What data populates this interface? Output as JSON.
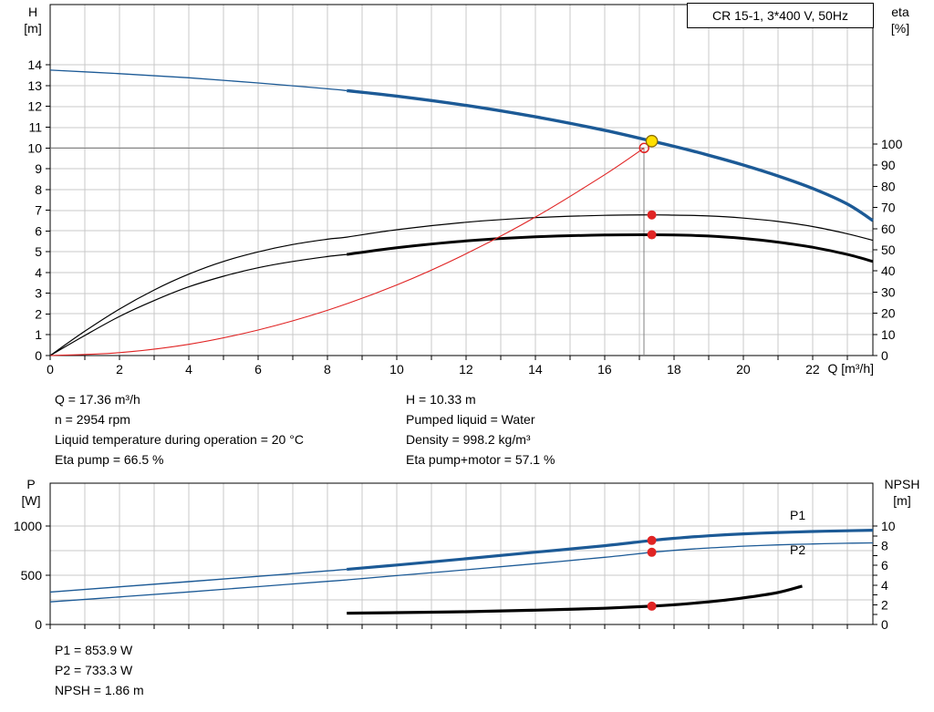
{
  "model_box": "CR 15-1, 3*400 V, 50Hz",
  "details": {
    "left": [
      "Q = 17.36 m³/h",
      "n = 2954 rpm",
      "Liquid temperature during operation = 20 °C",
      "Eta pump = 66.5 %"
    ],
    "right": [
      "H = 10.33 m",
      "Pumped liquid = Water",
      "Density = 998.2 kg/m³",
      "Eta pump+motor = 57.1 %"
    ]
  },
  "power_details": [
    "P1 = 853.9 W",
    "P2 = 733.3 W",
    "NPSH = 1.86 m"
  ],
  "colors": {
    "curve_blue": "#1c5a96",
    "curve_black": "#000000",
    "curve_red": "#e02424",
    "duty_yellow": "#ffdf00",
    "duty_ring": "#8a6d00",
    "grid": "#c9c9c9",
    "crosshair": "#808080",
    "axis": "#000000",
    "label_blue": "#1c5a96"
  },
  "chart_data": [
    {
      "type": "line",
      "title": "CR 15-1, 3*400 V, 50Hz",
      "grid": true,
      "x_axis": {
        "label": "Q [m³/h]",
        "min": 0,
        "max": 23.74,
        "tick_step": 1,
        "label_step": 2
      },
      "y_left": {
        "label": "H",
        "unit": "[m]",
        "min": 0,
        "max": 14,
        "tick_step": 1,
        "label_step": 1
      },
      "y_right": {
        "label": "eta",
        "unit": "[%]",
        "min": 0,
        "max": 100,
        "tick_step": 10,
        "label_step": 10
      },
      "operating_range_start": 8.56,
      "series": [
        {
          "name": "eta-pump",
          "axis": "right",
          "color_key": "curve_black",
          "width": 1.2,
          "points": [
            [
              0,
              0
            ],
            [
              1,
              11.5
            ],
            [
              2,
              22
            ],
            [
              3,
              31
            ],
            [
              4,
              38.5
            ],
            [
              5,
              44.5
            ],
            [
              6,
              49
            ],
            [
              7,
              52.5
            ],
            [
              8,
              55
            ],
            [
              8.56,
              56
            ],
            [
              10,
              59.5
            ],
            [
              12,
              63
            ],
            [
              14,
              65.2
            ],
            [
              16,
              66.3
            ],
            [
              17.36,
              66.5
            ],
            [
              18,
              66.4
            ],
            [
              19,
              66
            ],
            [
              20,
              65
            ],
            [
              21,
              63.4
            ],
            [
              22,
              61
            ],
            [
              23,
              57.6
            ],
            [
              23.74,
              54.5
            ]
          ]
        },
        {
          "name": "eta-pump-motor",
          "axis": "right",
          "color_key": "curve_black",
          "width": 1.2,
          "emph_from": 8.56,
          "emph_width": 3,
          "points": [
            [
              0,
              0
            ],
            [
              1,
              9.5
            ],
            [
              2,
              18.5
            ],
            [
              3,
              26
            ],
            [
              4,
              32.5
            ],
            [
              5,
              37.5
            ],
            [
              6,
              41.5
            ],
            [
              7,
              44.5
            ],
            [
              8,
              46.8
            ],
            [
              8.56,
              47.8
            ],
            [
              10,
              51
            ],
            [
              12,
              54.2
            ],
            [
              14,
              56.1
            ],
            [
              16,
              57
            ],
            [
              17.36,
              57.1
            ],
            [
              18,
              57
            ],
            [
              19,
              56.5
            ],
            [
              20,
              55.4
            ],
            [
              21,
              53.6
            ],
            [
              22,
              51.2
            ],
            [
              23,
              47.8
            ],
            [
              23.74,
              44.5
            ]
          ]
        },
        {
          "name": "system-curve",
          "axis": "left",
          "color_key": "curve_red",
          "width": 1.1,
          "points": [
            [
              0,
              0
            ],
            [
              2,
              0.14
            ],
            [
              4,
              0.54
            ],
            [
              6,
              1.23
            ],
            [
              8,
              2.18
            ],
            [
              10,
              3.4
            ],
            [
              12,
              4.9
            ],
            [
              14,
              6.67
            ],
            [
              16,
              8.71
            ],
            [
              17.14,
              10.0
            ]
          ]
        },
        {
          "name": "head",
          "axis": "left",
          "color_key": "curve_blue",
          "width": 1.3,
          "emph_from": 8.56,
          "emph_width": 3.4,
          "points": [
            [
              0,
              13.75
            ],
            [
              2,
              13.58
            ],
            [
              4,
              13.38
            ],
            [
              6,
              13.13
            ],
            [
              8,
              12.85
            ],
            [
              8.56,
              12.76
            ],
            [
              10,
              12.5
            ],
            [
              12,
              12.05
            ],
            [
              14,
              11.5
            ],
            [
              16,
              10.85
            ],
            [
              17.36,
              10.33
            ],
            [
              18,
              10.08
            ],
            [
              19,
              9.65
            ],
            [
              20,
              9.18
            ],
            [
              21,
              8.65
            ],
            [
              22,
              8.05
            ],
            [
              23,
              7.3
            ],
            [
              23.74,
              6.5
            ]
          ]
        }
      ],
      "crosshair": {
        "q": 17.14,
        "h": 10.0
      },
      "markers": [
        {
          "name": "requested-duty-point",
          "q": 17.14,
          "value": 10.0,
          "axis": "left",
          "style": "open-red"
        },
        {
          "name": "eta-pump-point",
          "q": 17.36,
          "value": 66.5,
          "axis": "right",
          "style": "red"
        },
        {
          "name": "eta-pump-motor-point",
          "q": 17.36,
          "value": 57.1,
          "axis": "right",
          "style": "red"
        },
        {
          "name": "duty-point",
          "q": 17.36,
          "value": 10.33,
          "axis": "left",
          "style": "duty"
        }
      ]
    },
    {
      "type": "line",
      "title": "",
      "grid": true,
      "x_axis": {
        "label": "",
        "min": 0,
        "max": 23.74,
        "tick_step": 1,
        "label_step": 0
      },
      "y_left": {
        "label": "P",
        "unit": "[W]",
        "min": 0,
        "max": 1000,
        "tick_step": 500,
        "label_step": 500
      },
      "y_right": {
        "label": "NPSH",
        "unit": "[m]",
        "min": 0,
        "max": 10,
        "tick_step": 1,
        "label_step": 2
      },
      "operating_range_start": 8.56,
      "series": [
        {
          "name": "p1",
          "label": "P1",
          "axis": "left",
          "color_key": "curve_blue",
          "width": 1.4,
          "emph_from": 8.56,
          "emph_width": 3.2,
          "points": [
            [
              0,
              330
            ],
            [
              2,
              382
            ],
            [
              4,
              435
            ],
            [
              6,
              489
            ],
            [
              8,
              544
            ],
            [
              8.56,
              560
            ],
            [
              10,
              604
            ],
            [
              12,
              668
            ],
            [
              14,
              734
            ],
            [
              16,
              800
            ],
            [
              17.36,
              854
            ],
            [
              18,
              875
            ],
            [
              19,
              901
            ],
            [
              20,
              920
            ],
            [
              21,
              934
            ],
            [
              22,
              944
            ],
            [
              23,
              952
            ],
            [
              23.74,
              957
            ]
          ]
        },
        {
          "name": "p2",
          "label": "P2",
          "axis": "left",
          "color_key": "curve_blue",
          "width": 1.3,
          "points": [
            [
              0,
              230
            ],
            [
              2,
              280
            ],
            [
              4,
              331
            ],
            [
              6,
              384
            ],
            [
              8,
              438
            ],
            [
              8.56,
              453
            ],
            [
              10,
              496
            ],
            [
              12,
              556
            ],
            [
              14,
              618
            ],
            [
              16,
              682
            ],
            [
              17.36,
              733
            ],
            [
              18,
              753
            ],
            [
              19,
              777
            ],
            [
              20,
              795
            ],
            [
              21,
              808
            ],
            [
              22,
              818
            ],
            [
              23,
              825
            ],
            [
              23.74,
              829
            ]
          ]
        },
        {
          "name": "npsh",
          "axis": "right",
          "color_key": "curve_black",
          "width": 3.2,
          "points": [
            [
              8.56,
              1.15
            ],
            [
              10,
              1.2
            ],
            [
              12,
              1.3
            ],
            [
              14,
              1.45
            ],
            [
              16,
              1.65
            ],
            [
              17.36,
              1.86
            ],
            [
              18,
              2.0
            ],
            [
              19,
              2.3
            ],
            [
              20,
              2.7
            ],
            [
              21,
              3.25
            ],
            [
              21.7,
              3.9
            ]
          ]
        }
      ],
      "markers": [
        {
          "name": "p1-point",
          "q": 17.36,
          "value": 853.9,
          "axis": "left",
          "style": "red"
        },
        {
          "name": "p2-point",
          "q": 17.36,
          "value": 733.3,
          "axis": "left",
          "style": "red"
        },
        {
          "name": "npsh-point",
          "q": 17.36,
          "value": 1.86,
          "axis": "right",
          "style": "red"
        }
      ]
    }
  ]
}
